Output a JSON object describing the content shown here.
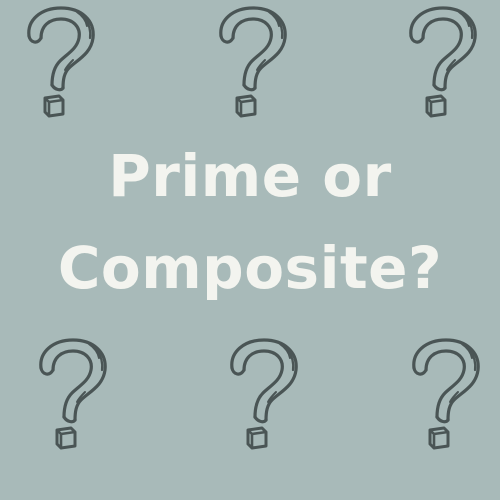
{
  "colors": {
    "background": "#a8bab9",
    "text": "#f3f4ef",
    "qmark_stroke": "#4a5555"
  },
  "graphic": {
    "title_line1": "Prime or",
    "title_line2": "Composite?",
    "decorations": [
      {
        "icon": "question-mark-icon"
      },
      {
        "icon": "question-mark-icon"
      },
      {
        "icon": "question-mark-icon"
      },
      {
        "icon": "question-mark-icon"
      },
      {
        "icon": "question-mark-icon"
      },
      {
        "icon": "question-mark-icon"
      }
    ]
  }
}
